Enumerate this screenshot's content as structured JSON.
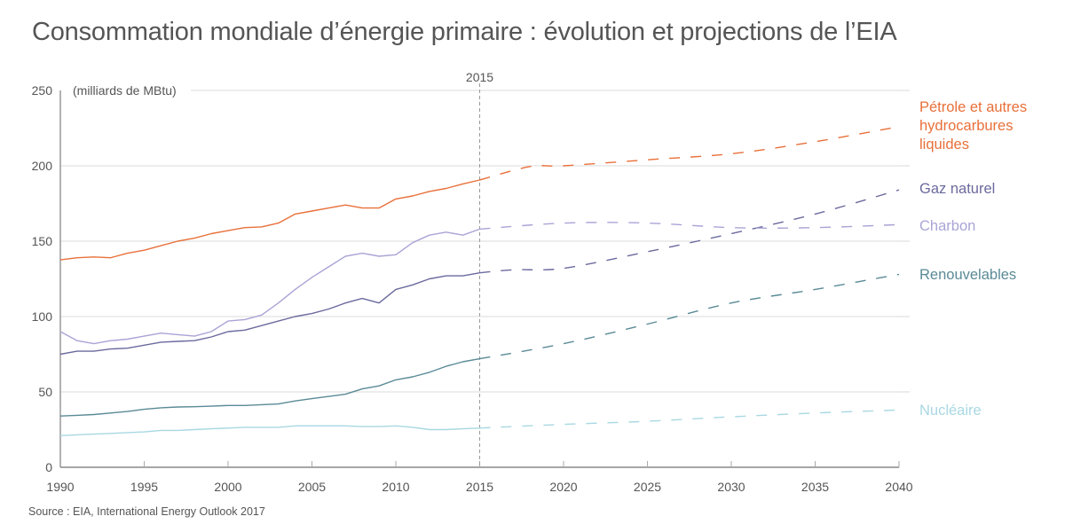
{
  "title": "Consommation mondiale d’énergie primaire : évolution et projections de l’EIA",
  "source": "Source : EIA, International Energy Outlook 2017",
  "chart_data": {
    "type": "line",
    "title": "Consommation mondiale d’énergie primaire : évolution et projections de l’EIA",
    "xlabel": "",
    "ylabel": "(milliards de MBtu)",
    "unit_label": "(milliards de MBtu)",
    "xlim": [
      1990,
      2040
    ],
    "ylim": [
      0,
      250
    ],
    "x_ticks": [
      1990,
      1995,
      2000,
      2005,
      2010,
      2015,
      2020,
      2025,
      2030,
      2035,
      2040
    ],
    "y_ticks": [
      0,
      50,
      100,
      150,
      200,
      250
    ],
    "grid": "horizontal",
    "projection_start": 2015,
    "projection_marker_label": "2015",
    "legend_placement": "right",
    "series": [
      {
        "name": "Pétrole et autres hydrocarbures liquides",
        "legend_lines": [
          "Pétrole et autres",
          "hydrocarbures",
          "liquides"
        ],
        "color": "#e8703a",
        "historical": {
          "x": [
            1990,
            1991,
            1992,
            1993,
            1994,
            1995,
            1996,
            1997,
            1998,
            1999,
            2000,
            2001,
            2002,
            2003,
            2004,
            2005,
            2006,
            2007,
            2008,
            2009,
            2010,
            2011,
            2012,
            2013,
            2014,
            2015
          ],
          "y": [
            137.6,
            139,
            139.5,
            139,
            142,
            144,
            147,
            150,
            152,
            155,
            157,
            159,
            159.5,
            162,
            168,
            170,
            172,
            174,
            172,
            172,
            178,
            180,
            183,
            185,
            188,
            190.6
          ]
        },
        "projection": {
          "x": [
            2015,
            2018,
            2020,
            2025,
            2030,
            2035,
            2040
          ],
          "y": [
            190.6,
            199.5,
            200,
            204,
            208,
            216,
            226
          ]
        }
      },
      {
        "name": "Gaz naturel",
        "legend_lines": [
          "Gaz naturel"
        ],
        "color": "#6b6a9e",
        "historical": {
          "x": [
            1990,
            1991,
            1992,
            1993,
            1994,
            1995,
            1996,
            1997,
            1998,
            1999,
            2000,
            2001,
            2002,
            2003,
            2004,
            2005,
            2006,
            2007,
            2008,
            2009,
            2010,
            2011,
            2012,
            2013,
            2014,
            2015
          ],
          "y": [
            75,
            77,
            77,
            78.5,
            79,
            81,
            83,
            83.5,
            84,
            86.5,
            90,
            91,
            94,
            97,
            100,
            102,
            105,
            109,
            112,
            109,
            118,
            121,
            125,
            127,
            127,
            129
          ]
        },
        "projection": {
          "x": [
            2015,
            2017,
            2020,
            2025,
            2030,
            2035,
            2040
          ],
          "y": [
            129,
            131,
            132,
            143,
            155,
            168,
            184
          ]
        }
      },
      {
        "name": "Charbon",
        "legend_lines": [
          "Charbon"
        ],
        "color": "#a9a4d6",
        "historical": {
          "x": [
            1990,
            1991,
            1992,
            1993,
            1994,
            1995,
            1996,
            1997,
            1998,
            1999,
            2000,
            2001,
            2002,
            2003,
            2004,
            2005,
            2006,
            2007,
            2008,
            2009,
            2010,
            2011,
            2012,
            2013,
            2014,
            2015
          ],
          "y": [
            90,
            84,
            82,
            84,
            85,
            87,
            89,
            88,
            87,
            90,
            97,
            98,
            101,
            109,
            118,
            126,
            133,
            140,
            142,
            140,
            141,
            149,
            154,
            156,
            154,
            158
          ]
        },
        "projection": {
          "x": [
            2015,
            2020,
            2025,
            2030,
            2035,
            2040
          ],
          "y": [
            158,
            162,
            162,
            159,
            159,
            161
          ]
        }
      },
      {
        "name": "Renouvelables",
        "legend_lines": [
          "Renouvelables"
        ],
        "color": "#5a8a96",
        "historical": {
          "x": [
            1990,
            1991,
            1992,
            1993,
            1994,
            1995,
            1996,
            1997,
            1998,
            1999,
            2000,
            2001,
            2002,
            2003,
            2004,
            2005,
            2006,
            2007,
            2008,
            2009,
            2010,
            2011,
            2012,
            2013,
            2014,
            2015
          ],
          "y": [
            34,
            34.5,
            35,
            36,
            37,
            38.5,
            39.5,
            40,
            40.2,
            40.5,
            41,
            41,
            41.5,
            42,
            44,
            45.5,
            47,
            48.5,
            52,
            54,
            58,
            60,
            63,
            67,
            70,
            72
          ]
        },
        "projection": {
          "x": [
            2015,
            2020,
            2025,
            2030,
            2035,
            2040
          ],
          "y": [
            72,
            82,
            95,
            109,
            118,
            128
          ]
        }
      },
      {
        "name": "Nucléaire",
        "legend_lines": [
          "Nucléaire"
        ],
        "color": "#a8d8e2",
        "historical": {
          "x": [
            1990,
            1991,
            1992,
            1993,
            1994,
            1995,
            1996,
            1997,
            1998,
            1999,
            2000,
            2001,
            2002,
            2003,
            2004,
            2005,
            2006,
            2007,
            2008,
            2009,
            2010,
            2011,
            2012,
            2013,
            2014,
            2015
          ],
          "y": [
            21,
            21.5,
            22,
            22.5,
            23,
            23.5,
            24.5,
            24.5,
            25,
            25.5,
            26,
            26.5,
            26.5,
            26.5,
            27.5,
            27.5,
            27.5,
            27.5,
            27,
            27,
            27.5,
            26.5,
            25,
            25,
            25.5,
            26
          ]
        },
        "projection": {
          "x": [
            2015,
            2020,
            2025,
            2030,
            2035,
            2040
          ],
          "y": [
            26,
            28.5,
            30.5,
            33.5,
            36,
            38
          ]
        }
      }
    ]
  }
}
